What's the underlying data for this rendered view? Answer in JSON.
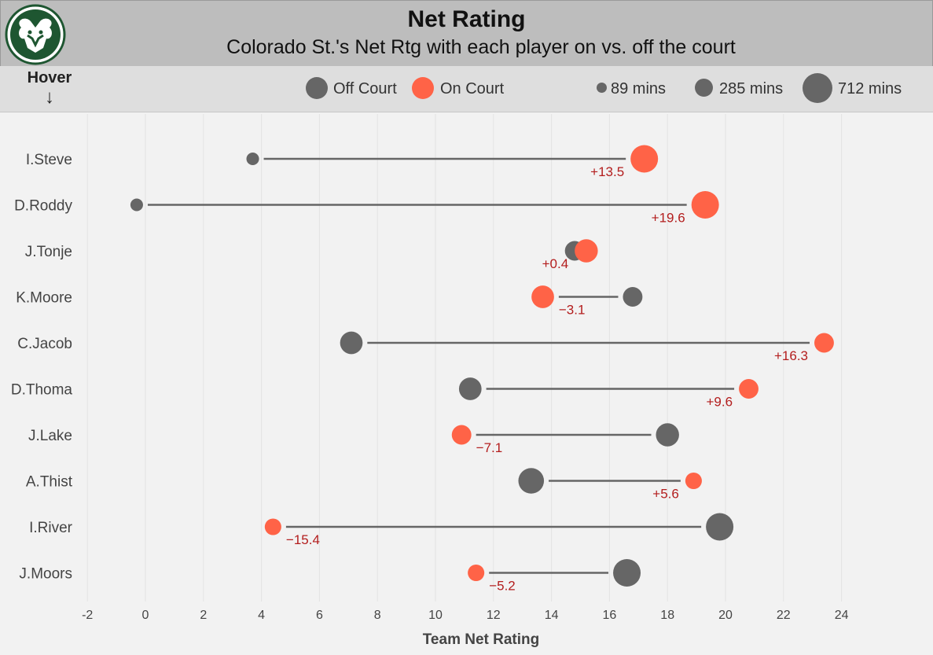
{
  "header": {
    "title": "Net Rating",
    "subtitle": "Colorado St.'s Net Rtg with each player on vs. off the court"
  },
  "hover_label": "Hover",
  "hover_arrow": "↓",
  "legend": {
    "off_label": "Off Court",
    "on_label": "On Court",
    "size_labels": [
      "89 mins",
      "285 mins",
      "712 mins"
    ]
  },
  "colors": {
    "off": "#666666",
    "on": "#ff6347",
    "diff_text": "#b31d1d",
    "header_bg": "#bdbdbd",
    "logo_green": "#1e5631"
  },
  "logo_icon": "ram-logo",
  "chart_data": {
    "type": "dumbbell",
    "xlabel": "Team Net Rating",
    "xlim": [
      -3,
      24.5
    ],
    "xticks": [
      -2,
      0,
      2,
      4,
      6,
      8,
      10,
      12,
      14,
      16,
      18,
      20,
      22,
      24
    ],
    "grid": true,
    "players": [
      {
        "name": "I.Steve",
        "off": 3.7,
        "on": 17.2,
        "diff": "+13.5",
        "off_mins": 89,
        "on_mins": 712
      },
      {
        "name": "D.Roddy",
        "off": -0.3,
        "on": 19.3,
        "diff": "+19.6",
        "off_mins": 89,
        "on_mins": 712
      },
      {
        "name": "J.Tonje",
        "off": 14.8,
        "on": 15.2,
        "diff": "+0.4",
        "off_mins": 285,
        "on_mins": 450
      },
      {
        "name": "K.Moore",
        "off": 16.8,
        "on": 13.7,
        "diff": "−3.1",
        "off_mins": 285,
        "on_mins": 420
      },
      {
        "name": "C.Jacob",
        "off": 7.1,
        "on": 23.4,
        "diff": "+16.3",
        "off_mins": 420,
        "on_mins": 285
      },
      {
        "name": "D.Thoma",
        "off": 11.2,
        "on": 20.8,
        "diff": "+9.6",
        "off_mins": 420,
        "on_mins": 285
      },
      {
        "name": "J.Lake",
        "off": 18.0,
        "on": 10.9,
        "diff": "−7.1",
        "off_mins": 450,
        "on_mins": 285
      },
      {
        "name": "A.Thist",
        "off": 13.3,
        "on": 18.9,
        "diff": "+5.6",
        "off_mins": 590,
        "on_mins": 180
      },
      {
        "name": "I.River",
        "off": 19.8,
        "on": 4.4,
        "diff": "−15.4",
        "off_mins": 712,
        "on_mins": 180
      },
      {
        "name": "J.Moors",
        "off": 16.6,
        "on": 11.4,
        "diff": "−5.2",
        "off_mins": 712,
        "on_mins": 180
      }
    ]
  }
}
